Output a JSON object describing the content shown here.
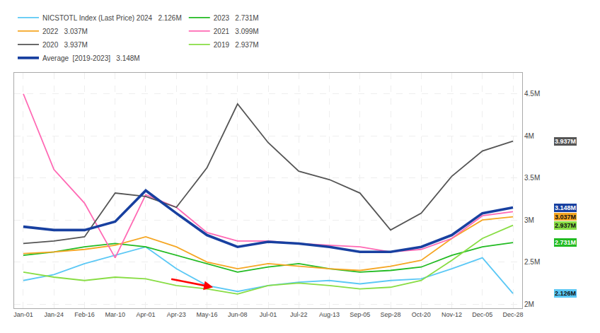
{
  "chart_data": {
    "type": "line",
    "categories": [
      "Jan-01",
      "Jan-24",
      "Feb-16",
      "Mar-10",
      "Apr-01",
      "Apr-23",
      "May-16",
      "Jun-08",
      "Jul-01",
      "Jul-22",
      "Aug-13",
      "Sep-05",
      "Sep-28",
      "Oct-20",
      "Nov-12",
      "Dec-05",
      "Dec-28"
    ],
    "series": [
      {
        "name": "NICSTOTL Index (Last Price) 2024",
        "legend_value": "2.126M",
        "color": "#5bc8f5",
        "values": [
          2.28,
          2.35,
          2.48,
          2.58,
          2.68,
          2.42,
          2.22,
          2.15,
          2.22,
          2.26,
          2.28,
          2.24,
          2.28,
          2.3,
          2.42,
          2.55,
          2.126
        ]
      },
      {
        "name": "2023",
        "legend_value": "2.731M",
        "color": "#22bb22",
        "values": [
          2.58,
          2.62,
          2.68,
          2.72,
          2.68,
          2.58,
          2.48,
          2.38,
          2.44,
          2.48,
          2.42,
          2.38,
          2.4,
          2.44,
          2.58,
          2.68,
          2.731
        ]
      },
      {
        "name": "2022",
        "legend_value": "3.037M",
        "color": "#f5a623",
        "values": [
          2.6,
          2.62,
          2.65,
          2.7,
          2.8,
          2.68,
          2.5,
          2.42,
          2.48,
          2.45,
          2.42,
          2.4,
          2.45,
          2.52,
          2.78,
          3.0,
          3.037
        ]
      },
      {
        "name": "2021",
        "legend_value": "3.099M",
        "color": "#ff69b4",
        "values": [
          4.5,
          3.6,
          3.2,
          2.55,
          3.3,
          3.15,
          2.85,
          2.75,
          2.75,
          2.72,
          2.7,
          2.68,
          2.62,
          2.65,
          2.78,
          3.05,
          3.099
        ]
      },
      {
        "name": "2020",
        "legend_value": "3.937M",
        "color": "#555555",
        "values": [
          2.72,
          2.75,
          2.8,
          3.32,
          3.28,
          3.15,
          3.62,
          4.38,
          3.92,
          3.58,
          3.48,
          3.32,
          2.88,
          3.08,
          3.52,
          3.82,
          3.937
        ]
      },
      {
        "name": "2019",
        "legend_value": "2.937M",
        "color": "#88dd44",
        "values": [
          2.38,
          2.32,
          2.28,
          2.32,
          2.3,
          2.22,
          2.18,
          2.12,
          2.22,
          2.25,
          2.22,
          2.18,
          2.2,
          2.28,
          2.52,
          2.78,
          2.937
        ]
      },
      {
        "name": "Average  [2019-2023]",
        "legend_value": "3.148M",
        "color": "#1840a0",
        "line_style": "thick",
        "values": [
          2.92,
          2.88,
          2.88,
          2.98,
          3.35,
          3.08,
          2.82,
          2.68,
          2.74,
          2.72,
          2.68,
          2.62,
          2.62,
          2.68,
          2.82,
          3.08,
          3.148
        ]
      }
    ],
    "ylim": [
      1.95,
      4.75
    ],
    "yticks": [
      {
        "value": 2.0,
        "label": "2M"
      },
      {
        "value": 2.5,
        "label": "2.5M"
      },
      {
        "value": 3.0,
        "label": "3M"
      },
      {
        "value": 3.5,
        "label": "3.5M"
      },
      {
        "value": 4.0,
        "label": "4M"
      },
      {
        "value": 4.5,
        "label": "4.5M"
      }
    ],
    "grid": true,
    "legend": "top",
    "annotations": [
      {
        "text": "3.937M",
        "y": 3.937,
        "color": "#555555"
      },
      {
        "text": "3.148M",
        "y": 3.148,
        "color": "#1840a0"
      },
      {
        "text": "3.037M",
        "y": 3.037,
        "color": "#f5a623"
      },
      {
        "text": "2.937M",
        "y": 2.937,
        "color": "#88dd44"
      },
      {
        "text": "2.731M",
        "y": 2.731,
        "color": "#22bb22"
      },
      {
        "text": "2.126M",
        "y": 2.126,
        "color": "#5bc8f5"
      }
    ],
    "arrow": {
      "tail_x": 4.8,
      "tail_y": 2.3,
      "head_x": 6.2,
      "head_y": 2.2,
      "color": "red"
    }
  }
}
